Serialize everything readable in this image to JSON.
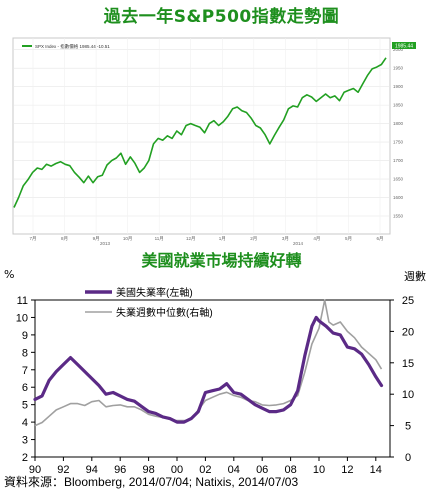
{
  "top_title": "過去一年S&P500指數走勢圖",
  "mid_title": "美國就業市場持續好轉",
  "source": "資料來源：Bloomberg, 2014/07/04; Natixis, 2014/07/03",
  "colors": {
    "title_green": "#1e8f1e",
    "sp500_line": "#22a022",
    "unemployment": "#5b2a86",
    "duration": "#a0a0a0",
    "last_value_box": "#22a022"
  },
  "chart_data": [
    {
      "type": "line",
      "title": "過去一年S&P500指數走勢圖",
      "legend": [
        "SPX Index - 指數價格  1985.44  -10.51"
      ],
      "last_value": "1985.44",
      "ylim": [
        1550,
        2010
      ],
      "y_ticks": [
        1550,
        1600,
        1650,
        1700,
        1750,
        1800,
        1850,
        1900,
        1950,
        2000
      ],
      "x_tick_labels": [
        "7月",
        "8月",
        "9月",
        "10月",
        "11月",
        "12月",
        "1月",
        "2月",
        "3月",
        "4月",
        "5月",
        "6月"
      ],
      "x_year_labels": [
        "2013",
        "2014"
      ],
      "x": [
        0,
        1,
        2,
        3,
        4,
        5,
        6,
        7,
        8,
        9,
        10,
        11,
        12,
        13,
        14,
        15,
        16,
        17,
        18,
        19,
        20,
        21,
        22,
        23,
        24,
        25,
        26,
        27,
        28,
        29,
        30,
        31,
        32,
        33,
        34,
        35,
        36,
        37,
        38,
        39,
        40,
        41,
        42,
        43,
        44,
        45,
        46,
        47,
        48,
        49,
        50,
        51,
        52,
        53,
        54,
        55,
        56,
        57,
        58,
        59,
        60,
        61,
        62,
        63,
        64,
        65,
        66,
        67,
        68,
        69,
        70,
        71,
        72,
        73,
        74,
        75,
        76,
        77,
        78,
        79,
        80
      ],
      "series": [
        {
          "name": "SPX Index",
          "values": [
            1573,
            1600,
            1632,
            1648,
            1668,
            1680,
            1676,
            1690,
            1685,
            1692,
            1697,
            1690,
            1686,
            1668,
            1655,
            1640,
            1658,
            1640,
            1656,
            1660,
            1688,
            1700,
            1707,
            1720,
            1690,
            1710,
            1693,
            1668,
            1680,
            1700,
            1745,
            1760,
            1755,
            1767,
            1760,
            1780,
            1770,
            1795,
            1800,
            1795,
            1790,
            1775,
            1800,
            1808,
            1795,
            1805,
            1820,
            1840,
            1845,
            1835,
            1830,
            1815,
            1795,
            1788,
            1770,
            1745,
            1768,
            1790,
            1810,
            1840,
            1848,
            1845,
            1870,
            1878,
            1872,
            1860,
            1870,
            1880,
            1870,
            1875,
            1862,
            1885,
            1890,
            1895,
            1885,
            1908,
            1930,
            1948,
            1953,
            1960,
            1978
          ]
        }
      ]
    },
    {
      "type": "line",
      "title": "美國就業市場持續好轉",
      "left_unit": "%",
      "right_unit": "週數",
      "x_tick_labels": [
        "90",
        "92",
        "94",
        "96",
        "98",
        "00",
        "02",
        "04",
        "06",
        "08",
        "10",
        "12",
        "14"
      ],
      "xlim": [
        1990,
        2015
      ],
      "ylim_left": [
        2,
        11
      ],
      "y_ticks_left": [
        2,
        3,
        4,
        5,
        6,
        7,
        8,
        9,
        10,
        11
      ],
      "ylim_right": [
        0,
        25
      ],
      "y_ticks_right": [
        0,
        5,
        10,
        15,
        20,
        25
      ],
      "grid": false,
      "legend_position": "top-center",
      "series": [
        {
          "name": "美國失業率(左軸)",
          "axis": "left",
          "x": [
            1990.0,
            1990.5,
            1991.0,
            1991.5,
            1992.0,
            1992.5,
            1993.0,
            1993.5,
            1994.0,
            1994.5,
            1995.0,
            1995.5,
            1996.0,
            1996.5,
            1997.0,
            1997.5,
            1998.0,
            1998.5,
            1999.0,
            1999.5,
            2000.0,
            2000.5,
            2001.0,
            2001.5,
            2002.0,
            2002.5,
            2003.0,
            2003.5,
            2004.0,
            2004.5,
            2005.0,
            2005.5,
            2006.0,
            2006.5,
            2007.0,
            2007.5,
            2008.0,
            2008.5,
            2009.0,
            2009.5,
            2009.8,
            2010.0,
            2010.5,
            2011.0,
            2011.5,
            2012.0,
            2012.5,
            2013.0,
            2013.5,
            2014.0,
            2014.4
          ],
          "values": [
            5.3,
            5.5,
            6.4,
            6.9,
            7.3,
            7.7,
            7.3,
            6.9,
            6.5,
            6.1,
            5.6,
            5.7,
            5.5,
            5.3,
            5.2,
            4.9,
            4.6,
            4.5,
            4.3,
            4.2,
            4.0,
            4.0,
            4.2,
            4.6,
            5.7,
            5.8,
            5.9,
            6.2,
            5.7,
            5.6,
            5.3,
            5.0,
            4.8,
            4.6,
            4.6,
            4.7,
            5.0,
            5.8,
            7.8,
            9.5,
            10.0,
            9.8,
            9.5,
            9.1,
            9.0,
            8.3,
            8.2,
            7.9,
            7.3,
            6.6,
            6.1
          ]
        },
        {
          "name": "失業週數中位數(右軸)",
          "axis": "right",
          "x": [
            1990.0,
            1990.5,
            1991.0,
            1991.5,
            1992.0,
            1992.5,
            1993.0,
            1993.5,
            1994.0,
            1994.5,
            1995.0,
            1995.5,
            1996.0,
            1996.5,
            1997.0,
            1997.5,
            1998.0,
            1998.5,
            1999.0,
            1999.5,
            2000.0,
            2000.5,
            2001.0,
            2001.5,
            2002.0,
            2002.5,
            2003.0,
            2003.5,
            2004.0,
            2004.5,
            2005.0,
            2005.5,
            2006.0,
            2006.5,
            2007.0,
            2007.5,
            2008.0,
            2008.5,
            2009.0,
            2009.5,
            2010.0,
            2010.4,
            2010.7,
            2011.0,
            2011.5,
            2012.0,
            2012.5,
            2013.0,
            2013.5,
            2014.0,
            2014.4
          ],
          "values": [
            5.0,
            5.5,
            6.5,
            7.5,
            8.0,
            8.5,
            8.5,
            8.2,
            8.8,
            9.0,
            8.0,
            8.2,
            8.3,
            8.0,
            8.0,
            7.5,
            6.8,
            6.5,
            6.3,
            6.0,
            5.8,
            5.8,
            6.0,
            7.5,
            9.0,
            9.5,
            10.0,
            10.3,
            9.8,
            9.5,
            9.0,
            8.8,
            8.3,
            8.2,
            8.3,
            8.5,
            9.0,
            9.8,
            13.5,
            18.0,
            20.5,
            25.0,
            21.5,
            21.0,
            21.5,
            20.0,
            19.0,
            17.5,
            16.5,
            15.5,
            14.0
          ]
        }
      ]
    }
  ]
}
